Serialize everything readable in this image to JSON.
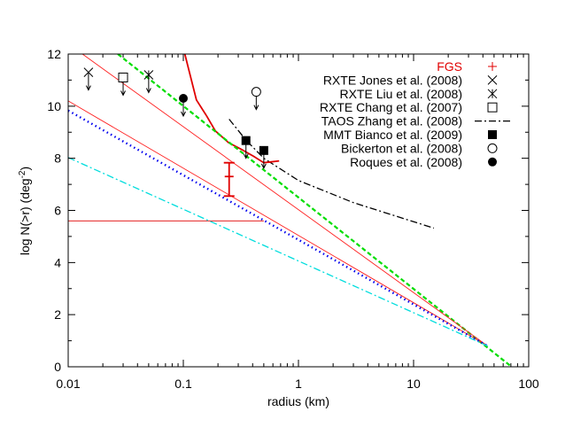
{
  "chart_data": {
    "type": "line",
    "xlabel": "radius (km)",
    "ylabel_main": "log N(>r) (deg",
    "ylabel_sup": "-2",
    "ylabel_end": ")",
    "xscale": "log",
    "xlim": [
      0.01,
      100
    ],
    "ylim": [
      0,
      12
    ],
    "xticks": [
      {
        "v": 0.01,
        "label": "0.01"
      },
      {
        "v": 0.1,
        "label": "0.1"
      },
      {
        "v": 1,
        "label": "1"
      },
      {
        "v": 10,
        "label": "10"
      },
      {
        "v": 100,
        "label": "100"
      }
    ],
    "yticks": [
      {
        "v": 0,
        "label": "0"
      },
      {
        "v": 2,
        "label": "2"
      },
      {
        "v": 4,
        "label": "4"
      },
      {
        "v": 6,
        "label": "6"
      },
      {
        "v": 8,
        "label": "8"
      },
      {
        "v": 10,
        "label": "10"
      },
      {
        "v": 12,
        "label": "12"
      }
    ],
    "grid": false,
    "legend_placement": "top-right",
    "legend": [
      {
        "label": "FGS",
        "symbol": "plus",
        "color": "#e00000"
      },
      {
        "label": "RXTE Jones et al. (2008)",
        "symbol": "cross",
        "color": "#000000"
      },
      {
        "label": "RXTE Liu et al. (2008)",
        "symbol": "asterisk",
        "color": "#000000"
      },
      {
        "label": "RXTE Chang et al. (2007)",
        "symbol": "open-square",
        "color": "#000000"
      },
      {
        "label": "TAOS Zhang et al. (2008)",
        "symbol": "dash-dot-line",
        "color": "#000000"
      },
      {
        "label": "MMT Bianco et al. (2009)",
        "symbol": "filled-square",
        "color": "#000000"
      },
      {
        "label": "Bickerton et al. (2008)",
        "symbol": "open-circle",
        "color": "#000000"
      },
      {
        "label": "Roques et al. (2008)",
        "symbol": "filled-circle",
        "color": "#000000"
      }
    ],
    "points": [
      {
        "name": "RXTE Jones et al. (2008)",
        "symbol": "cross",
        "x": 0.015,
        "y": 11.3,
        "upper_limit": true
      },
      {
        "name": "RXTE Chang et al. (2007)",
        "symbol": "open-square",
        "x": 0.03,
        "y": 11.1,
        "upper_limit": true
      },
      {
        "name": "RXTE Liu et al. (2008)",
        "symbol": "asterisk",
        "x": 0.05,
        "y": 11.2,
        "upper_limit": true
      },
      {
        "name": "Roques et al. (2008)",
        "symbol": "filled-circle",
        "x": 0.1,
        "y": 10.3,
        "upper_limit": true
      },
      {
        "name": "Bickerton et al. (2008)",
        "symbol": "open-circle",
        "x": 0.43,
        "y": 10.55,
        "upper_limit": true
      },
      {
        "name": "MMT Bianco et al. (2009)",
        "symbol": "filled-square",
        "x": 0.35,
        "y": 8.68,
        "upper_limit": true
      },
      {
        "name": "MMT Bianco et al. (2009)",
        "symbol": "filled-square",
        "x": 0.5,
        "y": 8.3,
        "upper_limit": true
      }
    ],
    "fgs_errorbar": {
      "x": 0.25,
      "y": 7.3,
      "ylow": 6.55,
      "yhigh": 7.83,
      "color": "#e00000"
    },
    "series": [
      {
        "name": "TAOS Zhang et al. (2008)",
        "style": "dash-dot",
        "color": "#000000",
        "x": [
          0.25,
          0.35,
          0.5,
          1,
          3,
          15
        ],
        "y": [
          9.5,
          8.7,
          8.0,
          7.15,
          6.3,
          5.32
        ]
      },
      {
        "style": "solid-thick",
        "color": "#e00000",
        "x": [
          0.103,
          0.13,
          0.159,
          0.19,
          0.247,
          0.32,
          0.41,
          0.5,
          0.57,
          0.68
        ],
        "y": [
          12,
          10.24,
          9.63,
          9.05,
          8.6,
          8.34,
          8.07,
          7.83,
          7.86,
          7.9
        ]
      },
      {
        "style": "dashed",
        "color": "#00dd00",
        "x": [
          0.027,
          71
        ],
        "y": [
          12,
          0
        ]
      },
      {
        "style": "solid-thin",
        "color": "#ff2020",
        "x": [
          0.0133,
          44
        ],
        "y": [
          12,
          0.8
        ]
      },
      {
        "style": "solid-thin",
        "color": "#ff2020",
        "x": [
          0.01,
          44
        ],
        "y": [
          10.2,
          0.8
        ]
      },
      {
        "style": "solid-thin",
        "color": "#e00000",
        "x": [
          0.01,
          0.5
        ],
        "y": [
          5.6,
          5.6
        ]
      },
      {
        "style": "dotted",
        "color": "#0000ee",
        "x": [
          0.01,
          44
        ],
        "y": [
          9.83,
          0.8
        ]
      },
      {
        "style": "dash-dot",
        "color": "#00dddd",
        "x": [
          0.01,
          44
        ],
        "y": [
          8.03,
          0.8
        ]
      }
    ]
  }
}
